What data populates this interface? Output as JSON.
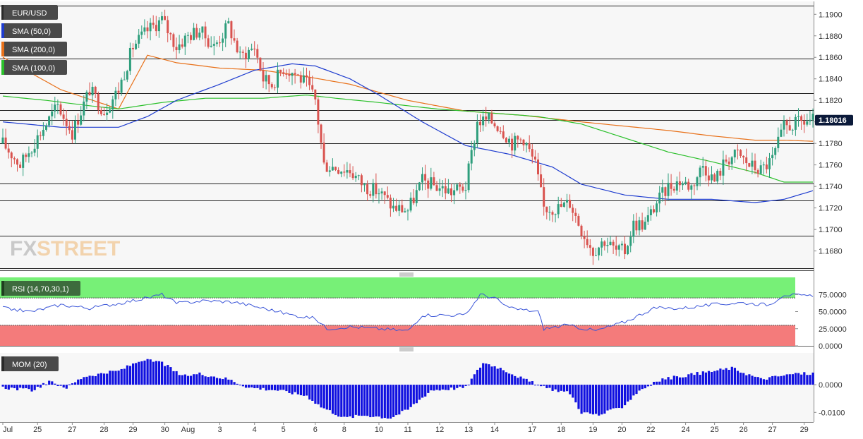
{
  "symbol": "EUR/USD",
  "indicators": {
    "sma50": {
      "label": "SMA (50,0)",
      "color": "#1e3ccf"
    },
    "sma200": {
      "label": "SMA (200,0)",
      "color": "#e8711a"
    },
    "sma100": {
      "label": "SMA (100,0)",
      "color": "#2bc02b"
    },
    "rsi": {
      "label": "RSI (14,70,30,1)",
      "color": "#3a55d8"
    },
    "mom": {
      "label": "MOM (20)",
      "color": "#1010e0"
    }
  },
  "watermark": {
    "part1": "FX",
    "part2": "STREET"
  },
  "colors": {
    "up": "#2e9e7c",
    "down": "#d9534f",
    "ob_zone": "#77f077",
    "os_zone": "#f47b7b",
    "price_tag": "#0b1a3a"
  },
  "chart_data": {
    "type": "candlestick",
    "price_axis": {
      "ylim": [
        1.1662,
        1.1912
      ],
      "ticks": [
        "1.1900",
        "1.1880",
        "1.1860",
        "1.1840",
        "1.1820",
        "1.1800",
        "1.1780",
        "1.1760",
        "1.1740",
        "1.1720",
        "1.1700",
        "1.1680"
      ],
      "tick_values": [
        1.19,
        1.188,
        1.186,
        1.184,
        1.182,
        1.18,
        1.178,
        1.176,
        1.174,
        1.172,
        1.17,
        1.168
      ],
      "current_price": "1.18016",
      "horizontal_levels": [
        1.1908,
        1.1859,
        1.1827,
        1.1811,
        1.1802,
        1.178,
        1.1743,
        1.1727,
        1.1694,
        1.1664
      ]
    },
    "time_axis": {
      "labels": [
        "Jul",
        "25",
        "27",
        "28",
        "29",
        "30",
        "Aug",
        "3",
        "4",
        "5",
        "6",
        "8",
        "10",
        "11",
        "12",
        "13",
        "14",
        "17",
        "18",
        "19",
        "20",
        "22",
        "24",
        "25",
        "26",
        "27",
        "29"
      ],
      "indices": [
        0,
        12,
        24,
        35,
        45,
        56,
        64,
        75,
        87,
        97,
        108,
        118,
        130,
        140,
        151,
        161,
        170,
        183,
        193,
        204,
        214,
        224,
        236,
        246,
        256,
        266,
        277
      ]
    },
    "candles": {
      "count": 281,
      "anchors": [
        [
          0,
          1.178
        ],
        [
          6,
          1.176
        ],
        [
          13,
          1.179
        ],
        [
          19,
          1.1815
        ],
        [
          24,
          1.179
        ],
        [
          30,
          1.183
        ],
        [
          35,
          1.181
        ],
        [
          40,
          1.183
        ],
        [
          45,
          1.187
        ],
        [
          50,
          1.1885
        ],
        [
          55,
          1.1895
        ],
        [
          60,
          1.187
        ],
        [
          64,
          1.188
        ],
        [
          68,
          1.1885
        ],
        [
          73,
          1.187
        ],
        [
          78,
          1.189
        ],
        [
          82,
          1.186
        ],
        [
          87,
          1.187
        ],
        [
          90,
          1.184
        ],
        [
          93,
          1.1835
        ],
        [
          97,
          1.185
        ],
        [
          101,
          1.1845
        ],
        [
          105,
          1.1835
        ],
        [
          108,
          1.182
        ],
        [
          111,
          1.176
        ],
        [
          115,
          1.1758
        ],
        [
          120,
          1.1755
        ],
        [
          125,
          1.174
        ],
        [
          130,
          1.1735
        ],
        [
          135,
          1.172
        ],
        [
          140,
          1.1718
        ],
        [
          145,
          1.1745
        ],
        [
          150,
          1.174
        ],
        [
          155,
          1.1735
        ],
        [
          160,
          1.174
        ],
        [
          164,
          1.18
        ],
        [
          168,
          1.1802
        ],
        [
          172,
          1.1795
        ],
        [
          176,
          1.178
        ],
        [
          180,
          1.1785
        ],
        [
          184,
          1.176
        ],
        [
          187,
          1.172
        ],
        [
          192,
          1.172
        ],
        [
          196,
          1.1725
        ],
        [
          200,
          1.17
        ],
        [
          204,
          1.168
        ],
        [
          208,
          1.169
        ],
        [
          212,
          1.168
        ],
        [
          215,
          1.168
        ],
        [
          218,
          1.1705
        ],
        [
          222,
          1.1705
        ],
        [
          226,
          1.1725
        ],
        [
          230,
          1.174
        ],
        [
          234,
          1.1745
        ],
        [
          238,
          1.174
        ],
        [
          242,
          1.176
        ],
        [
          246,
          1.1745
        ],
        [
          250,
          1.1765
        ],
        [
          254,
          1.177
        ],
        [
          258,
          1.176
        ],
        [
          262,
          1.1755
        ],
        [
          266,
          1.1765
        ],
        [
          270,
          1.1795
        ],
        [
          274,
          1.1798
        ],
        [
          277,
          1.18
        ],
        [
          280,
          1.1802
        ]
      ]
    },
    "sma50": [
      [
        0,
        1.18
      ],
      [
        20,
        1.1795
      ],
      [
        40,
        1.1795
      ],
      [
        50,
        1.1805
      ],
      [
        60,
        1.182
      ],
      [
        75,
        1.1835
      ],
      [
        87,
        1.1848
      ],
      [
        100,
        1.1854
      ],
      [
        108,
        1.1852
      ],
      [
        120,
        1.184
      ],
      [
        130,
        1.1825
      ],
      [
        145,
        1.18
      ],
      [
        160,
        1.1778
      ],
      [
        175,
        1.177
      ],
      [
        190,
        1.1758
      ],
      [
        200,
        1.1742
      ],
      [
        215,
        1.1732
      ],
      [
        230,
        1.1728
      ],
      [
        245,
        1.1728
      ],
      [
        260,
        1.1725
      ],
      [
        270,
        1.1728
      ],
      [
        280,
        1.1736
      ]
    ],
    "sma200": [
      [
        0,
        1.186
      ],
      [
        20,
        1.183
      ],
      [
        40,
        1.1812
      ],
      [
        50,
        1.1862
      ],
      [
        60,
        1.1855
      ],
      [
        75,
        1.185
      ],
      [
        90,
        1.1848
      ],
      [
        105,
        1.1842
      ],
      [
        120,
        1.1835
      ],
      [
        140,
        1.182
      ],
      [
        160,
        1.181
      ],
      [
        180,
        1.1806
      ],
      [
        200,
        1.18
      ],
      [
        215,
        1.1796
      ],
      [
        230,
        1.1792
      ],
      [
        245,
        1.1787
      ],
      [
        260,
        1.1783
      ],
      [
        270,
        1.1783
      ],
      [
        280,
        1.1782
      ]
    ],
    "sma100": [
      [
        0,
        1.1824
      ],
      [
        15,
        1.182
      ],
      [
        30,
        1.1815
      ],
      [
        40,
        1.1812
      ],
      [
        55,
        1.1818
      ],
      [
        70,
        1.1822
      ],
      [
        90,
        1.1822
      ],
      [
        105,
        1.1825
      ],
      [
        115,
        1.1822
      ],
      [
        130,
        1.1818
      ],
      [
        150,
        1.1812
      ],
      [
        170,
        1.1808
      ],
      [
        185,
        1.1805
      ],
      [
        200,
        1.1798
      ],
      [
        215,
        1.1785
      ],
      [
        230,
        1.1772
      ],
      [
        245,
        1.1763
      ],
      [
        260,
        1.1753
      ],
      [
        270,
        1.1744
      ],
      [
        280,
        1.1744
      ]
    ],
    "rsi": {
      "ylim": [
        0,
        100
      ],
      "ticks": [
        "75.0000",
        "50.0000",
        "25.0000",
        "0.0000"
      ],
      "tick_values": [
        75,
        50,
        25,
        0
      ],
      "overbought": 70,
      "oversold": 30,
      "anchors": [
        [
          0,
          55
        ],
        [
          10,
          50
        ],
        [
          20,
          60
        ],
        [
          30,
          55
        ],
        [
          40,
          62
        ],
        [
          50,
          70
        ],
        [
          55,
          75
        ],
        [
          60,
          62
        ],
        [
          70,
          66
        ],
        [
          80,
          64
        ],
        [
          90,
          55
        ],
        [
          100,
          45
        ],
        [
          108,
          40
        ],
        [
          112,
          25
        ],
        [
          120,
          28
        ],
        [
          130,
          25
        ],
        [
          140,
          22
        ],
        [
          145,
          45
        ],
        [
          150,
          45
        ],
        [
          160,
          45
        ],
        [
          165,
          75
        ],
        [
          170,
          70
        ],
        [
          175,
          55
        ],
        [
          185,
          50
        ],
        [
          187,
          25
        ],
        [
          195,
          30
        ],
        [
          205,
          22
        ],
        [
          215,
          35
        ],
        [
          225,
          55
        ],
        [
          235,
          55
        ],
        [
          245,
          60
        ],
        [
          255,
          63
        ],
        [
          265,
          60
        ],
        [
          270,
          75
        ],
        [
          280,
          72
        ]
      ]
    },
    "mom": {
      "ylim": [
        -0.0135,
        0.0115
      ],
      "ticks": [
        "0.0000",
        "-0.0100"
      ],
      "tick_values": [
        0,
        -0.01
      ],
      "anchors": [
        [
          0,
          -0.001
        ],
        [
          10,
          -0.002
        ],
        [
          16,
          0.001
        ],
        [
          22,
          -0.001
        ],
        [
          28,
          0.003
        ],
        [
          40,
          0.005
        ],
        [
          48,
          0.009
        ],
        [
          55,
          0.008
        ],
        [
          62,
          0.003
        ],
        [
          68,
          0.004
        ],
        [
          78,
          0.002
        ],
        [
          85,
          -0.001
        ],
        [
          95,
          -0.002
        ],
        [
          105,
          -0.004
        ],
        [
          110,
          -0.008
        ],
        [
          118,
          -0.012
        ],
        [
          125,
          -0.011
        ],
        [
          134,
          -0.012
        ],
        [
          140,
          -0.009
        ],
        [
          148,
          -0.002
        ],
        [
          160,
          -0.001
        ],
        [
          166,
          0.008
        ],
        [
          172,
          0.006
        ],
        [
          180,
          0.002
        ],
        [
          187,
          -0.001
        ],
        [
          196,
          -0.003
        ],
        [
          200,
          -0.01
        ],
        [
          206,
          -0.011
        ],
        [
          214,
          -0.008
        ],
        [
          220,
          -0.002
        ],
        [
          228,
          0.002
        ],
        [
          240,
          0.004
        ],
        [
          252,
          0.006
        ],
        [
          262,
          0.002
        ],
        [
          268,
          0.003
        ],
        [
          274,
          0.004
        ],
        [
          280,
          0.004
        ]
      ]
    }
  }
}
